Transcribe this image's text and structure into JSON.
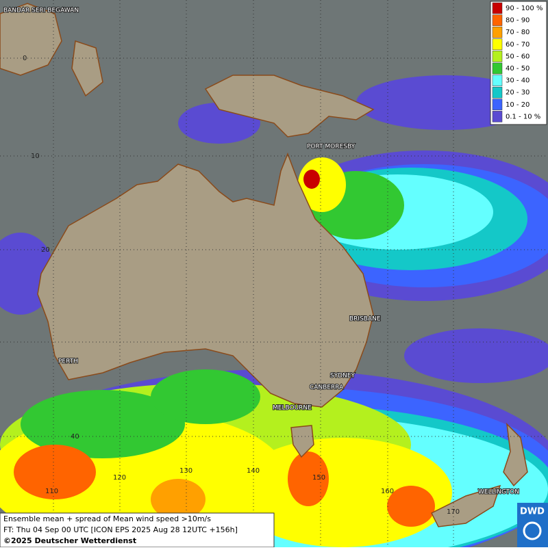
{
  "map": {
    "cities": [
      "BANDAR SERI BEGAWAN",
      "PORT MORESBY",
      "BRISBANE",
      "PERTH",
      "SYDNEY",
      "CANBERRA",
      "MELBOURNE",
      "WELLINGTON"
    ],
    "grid_labels": [
      "0",
      "10",
      "20",
      "40",
      "110",
      "120",
      "130",
      "140",
      "150",
      "160",
      "170"
    ]
  },
  "legend": {
    "items": [
      {
        "label": "90 - 100 %",
        "color": "#c80000"
      },
      {
        "label": "80 - 90",
        "color": "#ff6400"
      },
      {
        "label": "70 - 80",
        "color": "#ffa000"
      },
      {
        "label": "60 - 70",
        "color": "#ffff00"
      },
      {
        "label": "50 - 60",
        "color": "#b4f01e"
      },
      {
        "label": "40 - 50",
        "color": "#32c832"
      },
      {
        "label": "30 - 40",
        "color": "#64ffff"
      },
      {
        "label": "20 - 30",
        "color": "#14c8c8"
      },
      {
        "label": "10 - 20",
        "color": "#3c64ff"
      },
      {
        "label": "0.1 - 10 %",
        "color": "#5a4bd2"
      }
    ]
  },
  "footer": {
    "line1": "Ensemble mean + spread of Mean wind speed >10m/s",
    "line2": "FT: Thu 04 Sep 00 UTC [ICON EPS 2025 Aug 28 12UTC +156h]",
    "line3": "©2025 Deutscher Wetterdienst"
  },
  "logo": "DWD"
}
